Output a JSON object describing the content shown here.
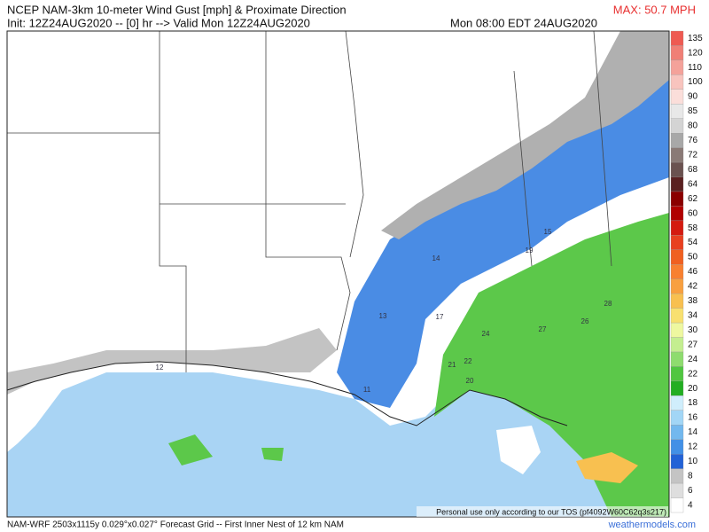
{
  "header": {
    "title": "NCEP NAM-3km 10-meter Wind Gust [mph] & Proximate Direction",
    "init": "Init: 12Z24AUG2020 -- [0] hr --> Valid Mon 12Z24AUG2020",
    "valid": "Mon 08:00 EDT 24AUG2020",
    "max": "MAX: 50.7 MPH"
  },
  "map": {
    "labels": [
      15,
      19,
      14,
      13,
      17,
      24,
      27,
      26,
      28,
      21,
      22,
      20,
      12,
      11
    ],
    "notice": "Personal use only according to our TOS (pf4092W60C62q3s217)"
  },
  "legend": {
    "labels": [
      135,
      120,
      110,
      100,
      90,
      85,
      80,
      76,
      72,
      68,
      64,
      62,
      60,
      58,
      54,
      50,
      46,
      42,
      38,
      34,
      30,
      27,
      24,
      22,
      20,
      18,
      16,
      14,
      12,
      10,
      8,
      6,
      4
    ],
    "colors": [
      "#ee5a52",
      "#f07f76",
      "#f4a29a",
      "#f8c4be",
      "#fbdeda",
      "#e8e8e8",
      "#d4d4d4",
      "#a8a8a8",
      "#8a7a76",
      "#6a5250",
      "#5a2020",
      "#8a0000",
      "#b00000",
      "#d41a10",
      "#e84020",
      "#f06020",
      "#f88030",
      "#f8a040",
      "#f8c050",
      "#f8e070",
      "#eef8a0",
      "#c4ee90",
      "#8edc6e",
      "#50c640",
      "#22ae22",
      "#d0eefc",
      "#a2d6f6",
      "#72b8ee",
      "#4290e6",
      "#2262d6",
      "#c4c4c4",
      "#dedede",
      "#ffffff"
    ]
  },
  "footer": {
    "info": "NAM-WRF 2503x1115y 0.029°x0.027° Forecast Grid -- First Inner Nest of 12 km NAM",
    "site": "weathermodels.com"
  }
}
